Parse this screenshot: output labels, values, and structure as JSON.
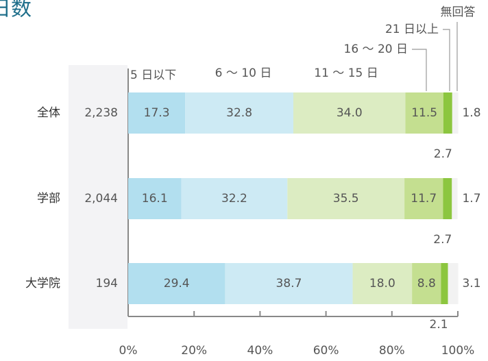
{
  "chart_data": {
    "type": "stacked-bar-horizontal",
    "title": "日数",
    "categories": [
      "全体",
      "学部",
      "大学院"
    ],
    "counts": [
      "2,238",
      "2,044",
      "194"
    ],
    "series": [
      {
        "name": "5 日以下",
        "color": "#b2dfef",
        "values": [
          17.3,
          16.1,
          29.4
        ],
        "value_labels": [
          "17.3",
          "16.1",
          "29.4"
        ]
      },
      {
        "name": "6 〜 10 日",
        "color": "#cdeaf4",
        "values": [
          32.8,
          32.2,
          38.7
        ],
        "value_labels": [
          "32.8",
          "32.2",
          "38.7"
        ]
      },
      {
        "name": "11 〜 15 日",
        "color": "#dcecc2",
        "values": [
          34.0,
          35.5,
          18.0
        ],
        "value_labels": [
          "34.0",
          "35.5",
          "18.0"
        ]
      },
      {
        "name": "16 〜 20 日",
        "color": "#c4df90",
        "values": [
          11.5,
          11.7,
          8.8
        ],
        "value_labels": [
          "11.5",
          "11.7",
          "8.8"
        ]
      },
      {
        "name": "21 日以上",
        "color": "#8cc63f",
        "values": [
          2.7,
          2.7,
          2.1
        ],
        "value_labels": [
          "2.7",
          "2.7",
          "2.1"
        ]
      },
      {
        "name": "無回答",
        "color": "#f2f2f2",
        "values": [
          1.8,
          1.7,
          3.1
        ],
        "value_labels": [
          "1.8",
          "1.7",
          "3.1"
        ]
      }
    ],
    "xlim": [
      0,
      100
    ],
    "xticks": [
      {
        "value": 0,
        "label": "0%"
      },
      {
        "value": 20,
        "label": "20%"
      },
      {
        "value": 40,
        "label": "40%"
      },
      {
        "value": 60,
        "label": "60%"
      },
      {
        "value": 80,
        "label": "80%"
      },
      {
        "value": 100,
        "label": "100%"
      }
    ]
  }
}
